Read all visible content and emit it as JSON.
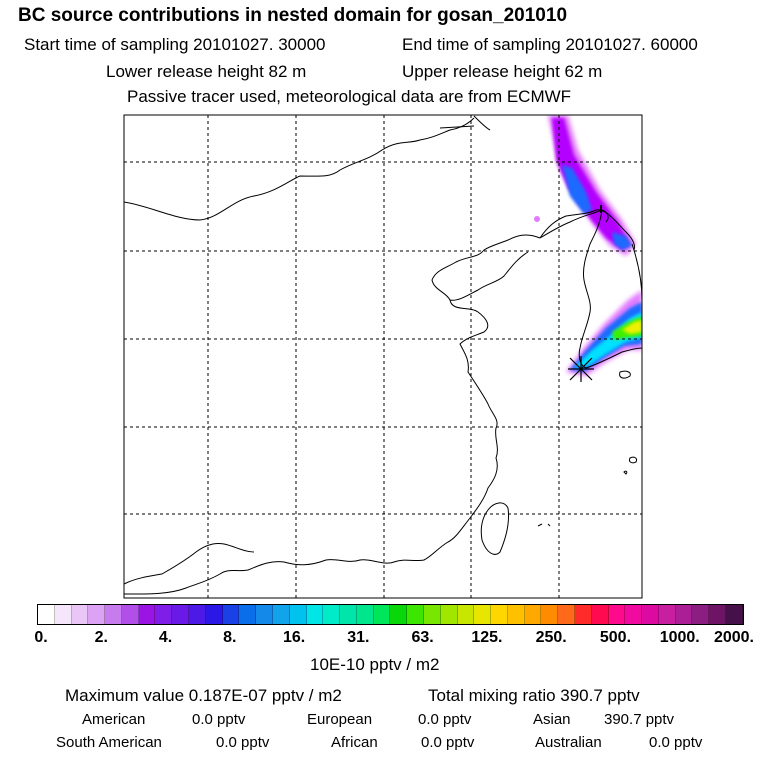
{
  "header": {
    "title": "BC  source contributions in nested domain for gosan_201010",
    "start_time": "Start time of sampling 20101027. 30000",
    "end_time": "End time of sampling 20101027. 60000",
    "lower_height": "Lower release height   82 m",
    "upper_height": "Upper release height   62 m",
    "tracer_note": "Passive tracer used, meteorological data are from ECMWF"
  },
  "colorbar": {
    "ticks": [
      "0.",
      "2.",
      "4.",
      "8.",
      "16.",
      "31.",
      "63.",
      "125.",
      "250.",
      "500.",
      "1000.",
      "2000."
    ],
    "colors": [
      "#ffffff",
      "#f6e6fb",
      "#eac6f7",
      "#dca2f3",
      "#c77cee",
      "#b24fe9",
      "#9a15e4",
      "#7f1ee6",
      "#6a1ae6",
      "#4c19e6",
      "#2a19e6",
      "#1a41e6",
      "#0a6eea",
      "#1489ea",
      "#12a4ea",
      "#00c2ee",
      "#00e6e6",
      "#00ebc8",
      "#00e6aa",
      "#00e68c",
      "#00e65a",
      "#0ad70a",
      "#3ce600",
      "#78e600",
      "#a0e600",
      "#c8e600",
      "#e6e600",
      "#ffd700",
      "#ffc000",
      "#ffa800",
      "#ff8c00",
      "#ff6a1a",
      "#ff2a2a",
      "#ff0a50",
      "#ff0a8c",
      "#f00aa0",
      "#dc0aa0",
      "#c81ea0",
      "#aa1e96",
      "#8c1e82",
      "#6e1464",
      "#46104a"
    ],
    "units": "10E-10 pptv / m2"
  },
  "stats": {
    "maximum": "Maximum value  0.187E-07 pptv / m2",
    "total_mixing": "Total mixing ratio      390.7 pptv",
    "rows": [
      [
        {
          "label": "American",
          "value": "0.0 pptv"
        },
        {
          "label": "European",
          "value": "0.0 pptv"
        },
        {
          "label": "Asian",
          "value": "390.7 pptv"
        }
      ],
      [
        {
          "label": "South American",
          "value": "0.0 pptv"
        },
        {
          "label": "African",
          "value": "0.0 pptv"
        },
        {
          "label": "Australian",
          "value": "0.0 pptv"
        }
      ]
    ]
  },
  "plume_colors": {
    "magenta": "#b400ff",
    "light_magenta": "#e27cff",
    "blue": "#1e6bff",
    "cyan": "#00e0ff",
    "green": "#3cf000",
    "yellow": "#f0f000"
  }
}
